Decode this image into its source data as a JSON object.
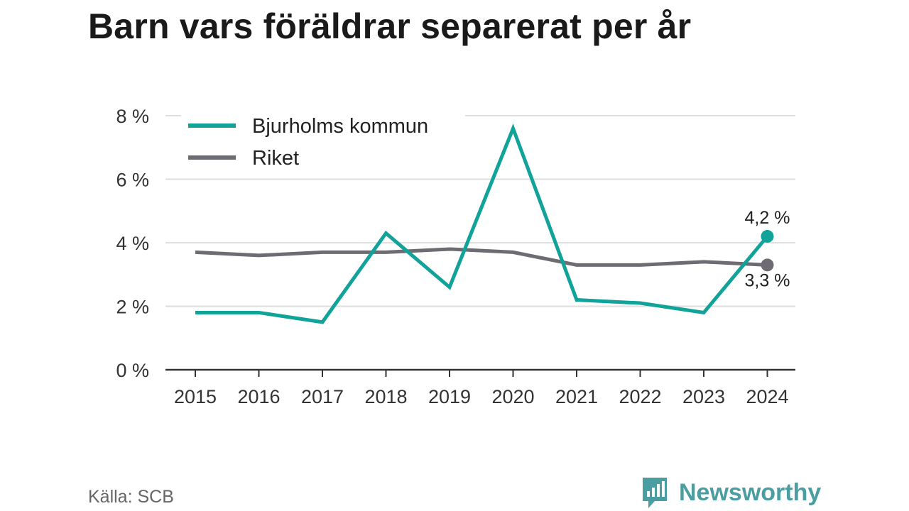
{
  "title": "Barn vars föräldrar separerat per år",
  "source": "Källa: SCB",
  "brand": "Newsworthy",
  "chart_data": {
    "type": "line",
    "title": "Barn vars föräldrar separerat per år",
    "x": [
      "2015",
      "2016",
      "2017",
      "2018",
      "2019",
      "2020",
      "2021",
      "2022",
      "2023",
      "2024"
    ],
    "ylim": [
      0,
      8
    ],
    "yticks": [
      0,
      2,
      4,
      6,
      8
    ],
    "ytick_labels": [
      "0 %",
      "2 %",
      "4 %",
      "6 %",
      "8 %"
    ],
    "grid": true,
    "legend_position": "top-left",
    "series": [
      {
        "name": "Bjurholms kommun",
        "color": "#11a39a",
        "values": [
          1.8,
          1.8,
          1.5,
          4.3,
          2.6,
          7.6,
          2.2,
          2.1,
          1.8,
          4.2
        ],
        "end_label": "4,2 %"
      },
      {
        "name": "Riket",
        "color": "#6e6c72",
        "values": [
          3.7,
          3.6,
          3.7,
          3.7,
          3.8,
          3.7,
          3.3,
          3.3,
          3.4,
          3.3
        ],
        "end_label": "3,3 %"
      }
    ]
  }
}
